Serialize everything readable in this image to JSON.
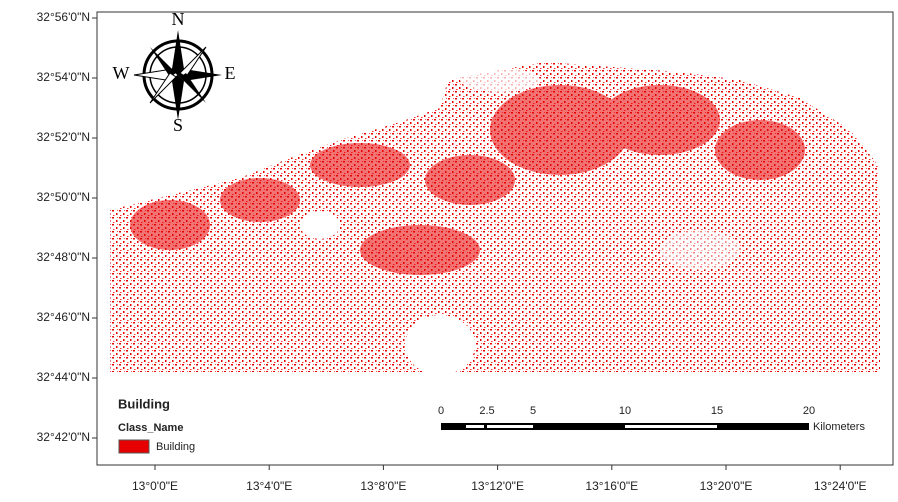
{
  "map": {
    "latitude_labels": [
      "32°56'0\"N",
      "32°54'0\"N",
      "32°52'0\"N",
      "32°50'0\"N",
      "32°48'0\"N",
      "32°46'0\"N",
      "32°44'0\"N",
      "32°42'0\"N"
    ],
    "longitude_labels": [
      "13°0'0\"E",
      "13°4'0\"E",
      "13°8'0\"E",
      "13°12'0\"E",
      "13°16'0\"E",
      "13°20'0\"E",
      "13°24'0\"E"
    ],
    "compass": {
      "north": "N",
      "south": "S",
      "east": "E",
      "west": "W"
    },
    "legend": {
      "title": "Building",
      "field": "Class_Name",
      "items": [
        "Building"
      ]
    },
    "scale_bar": {
      "ticks": [
        0,
        2.5,
        5,
        10,
        15,
        20
      ],
      "unit": "Kilometers"
    }
  }
}
